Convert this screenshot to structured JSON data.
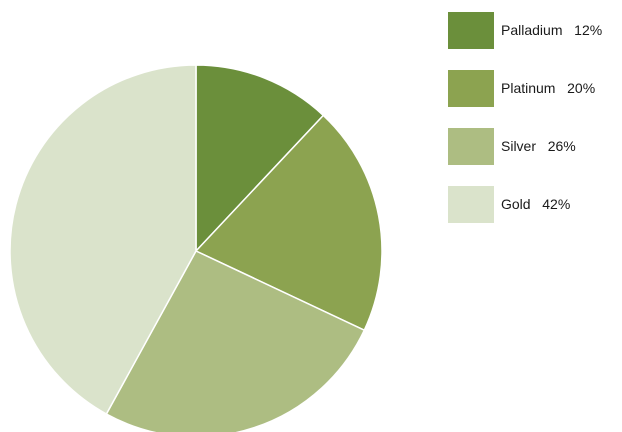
{
  "chart_data": {
    "type": "pie",
    "title": "",
    "start_angle_deg": 0,
    "direction": "clockwise",
    "slices": [
      {
        "label": "Palladium",
        "value": 12,
        "value_label": "12%",
        "color": "#6b8f3b"
      },
      {
        "label": "Platinum",
        "value": 20,
        "value_label": "20%",
        "color": "#8ca350"
      },
      {
        "label": "Silver",
        "value": 26,
        "value_label": "26%",
        "color": "#adbd82"
      },
      {
        "label": "Gold",
        "value": 42,
        "value_label": "42%",
        "color": "#dae3cb"
      }
    ],
    "legend_position": "top-right"
  },
  "legend": {
    "items": [
      {
        "label": "Palladium",
        "pct": "12%"
      },
      {
        "label": "Platinum",
        "pct": "20%"
      },
      {
        "label": "Silver",
        "pct": "26%"
      },
      {
        "label": "Gold",
        "pct": "42%"
      }
    ]
  }
}
